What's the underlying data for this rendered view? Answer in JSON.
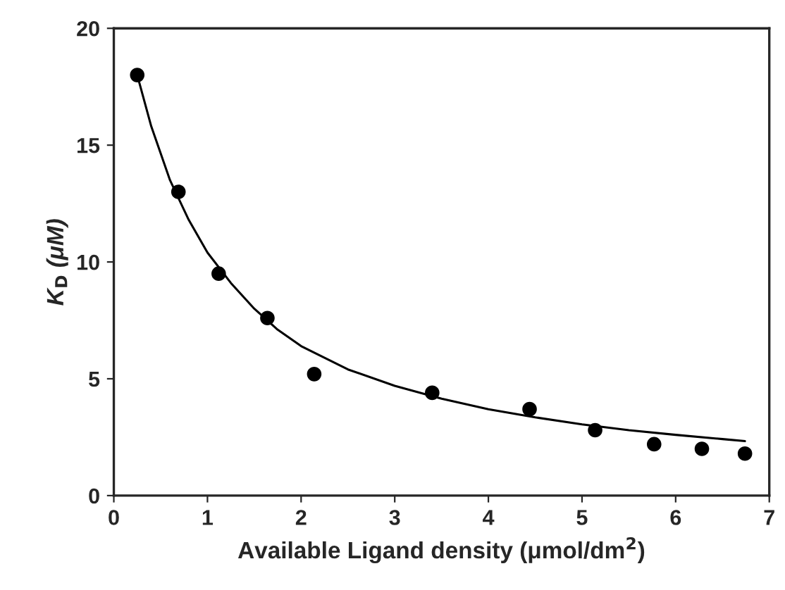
{
  "chart_data": {
    "type": "scatter",
    "xlabel": "Available Ligand density (μmol/dm$^{2}$)",
    "ylabel": "K$_{D}$ (μM)",
    "xlim": [
      0,
      7
    ],
    "ylim": [
      0,
      20
    ],
    "xticks": [
      0,
      1,
      2,
      3,
      4,
      5,
      6,
      7
    ],
    "yticks": [
      0,
      5,
      10,
      15,
      20
    ],
    "grid": false,
    "legend": false,
    "series": [
      {
        "color": "#000000",
        "marker": "circle",
        "x": [
          0.25,
          0.69,
          1.12,
          1.64,
          2.14,
          3.4,
          4.44,
          5.14,
          5.77,
          6.28,
          6.74
        ],
        "values": [
          18,
          13,
          9.5,
          7.6,
          5.2,
          4.4,
          3.7,
          2.8,
          2.2,
          2.0,
          1.8
        ]
      },
      {
        "type": "line",
        "color": "#000000",
        "marker": "none",
        "line_style": "solid",
        "x": [
          0.25,
          0.4,
          0.6,
          0.8,
          1.0,
          1.25,
          1.5,
          1.75,
          2.0,
          2.5,
          3.0,
          3.5,
          4.0,
          4.5,
          5.0,
          5.5,
          6.0,
          6.5,
          6.74
        ],
        "values": [
          18,
          15.8,
          13.5,
          11.8,
          10.4,
          9.1,
          8.0,
          7.1,
          6.4,
          5.4,
          4.7,
          4.15,
          3.7,
          3.35,
          3.05,
          2.8,
          2.6,
          2.42,
          2.33
        ]
      }
    ]
  }
}
